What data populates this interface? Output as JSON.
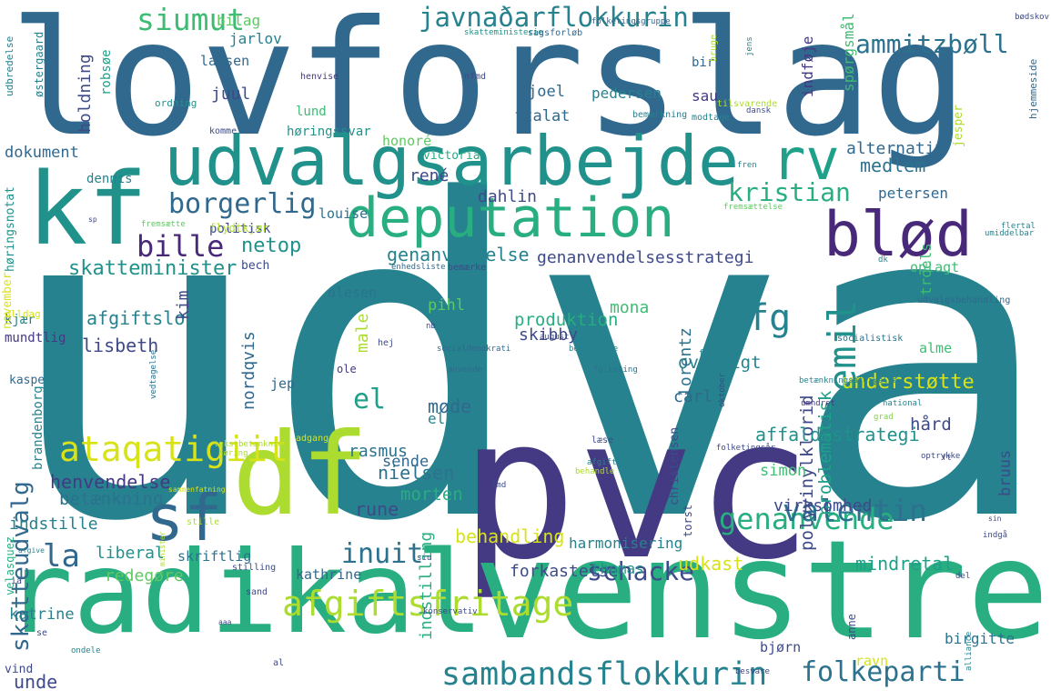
{
  "palette": {
    "dark_purple": "#482878",
    "purple": "#443983",
    "indigo": "#3e4a89",
    "blue": "#31688e",
    "steel": "#2c728e",
    "teal": "#26828e",
    "teal_green": "#21918c",
    "sea_green": "#1fa088",
    "green": "#28ae80",
    "emerald": "#3fbc73",
    "light_green": "#5ec962",
    "lime": "#84d44b",
    "yellow_green": "#addc30",
    "yellow": "#d8e219"
  },
  "words": [
    {
      "text": "udvalg",
      "color": "teal"
    },
    {
      "text": "lovforslag",
      "color": "blue"
    },
    {
      "text": "pvc",
      "color": "purple"
    },
    {
      "text": "venstre",
      "color": "green"
    },
    {
      "text": "radikal",
      "color": "green"
    },
    {
      "text": "udvalgsarbejde",
      "color": "teal_green"
    },
    {
      "text": "kf",
      "color": "teal_green"
    },
    {
      "text": "df",
      "color": "yellow_green"
    },
    {
      "text": "deputation",
      "color": "green"
    },
    {
      "text": "rv",
      "color": "sea_green"
    },
    {
      "text": "blød",
      "color": "dark_purple"
    },
    {
      "text": "sf",
      "color": "blue"
    },
    {
      "text": "afgiftsfritage",
      "color": "yellow_green"
    },
    {
      "text": "sambandsflokkurin",
      "color": "teal"
    },
    {
      "text": "javnaðarflokkurin",
      "color": "teal"
    },
    {
      "text": "ataqatigiit",
      "color": "yellow"
    },
    {
      "text": "siumut",
      "color": "emerald"
    },
    {
      "text": "ammitzbøll",
      "color": "steel"
    },
    {
      "text": "borgerlig",
      "color": "blue"
    },
    {
      "text": "bille",
      "color": "dark_purple"
    },
    {
      "text": "kristian",
      "color": "green"
    },
    {
      "text": "ufg",
      "color": "teal"
    },
    {
      "text": "emil",
      "color": "teal_green"
    },
    {
      "text": "genanvende",
      "color": "green"
    },
    {
      "text": "valentin",
      "color": "steel"
    },
    {
      "text": "folkeparti",
      "color": "steel"
    },
    {
      "text": "schacke",
      "color": "indigo"
    },
    {
      "text": "inuit",
      "color": "steel"
    },
    {
      "text": "la",
      "color": "blue"
    },
    {
      "text": "el",
      "color": "sea_green"
    },
    {
      "text": "skatteudvalg",
      "color": "blue"
    },
    {
      "text": "netop",
      "color": "teal_green"
    },
    {
      "text": "skatteminister",
      "color": "teal_green"
    },
    {
      "text": "genanvendelsesstrategi",
      "color": "indigo"
    },
    {
      "text": "produktion",
      "color": "green"
    },
    {
      "text": "polyvinylklorid",
      "color": "indigo"
    },
    {
      "text": "problematisk",
      "color": "sea_green"
    },
    {
      "text": "understøtte",
      "color": "yellow"
    },
    {
      "text": "mindretal",
      "color": "sea_green"
    },
    {
      "text": "affaldsstrategi",
      "color": "teal_green"
    },
    {
      "text": "virksomhed",
      "color": "indigo"
    },
    {
      "text": "indstille",
      "color": "teal"
    },
    {
      "text": "henvendelse",
      "color": "purple"
    },
    {
      "text": "betænkning",
      "color": "steel"
    },
    {
      "text": "liberal",
      "color": "teal_green"
    },
    {
      "text": "redegøre",
      "color": "light_green"
    },
    {
      "text": "katrine",
      "color": "teal"
    },
    {
      "text": "unde",
      "color": "indigo"
    },
    {
      "text": "skriftlig",
      "color": "steel"
    },
    {
      "text": "kathrine",
      "color": "blue"
    },
    {
      "text": "harmonisering",
      "color": "teal"
    },
    {
      "text": "forkastelse",
      "color": "indigo"
    },
    {
      "text": "thomas",
      "color": "teal_green"
    },
    {
      "text": "udkast",
      "color": "yellow"
    },
    {
      "text": "behandling",
      "color": "yellow"
    },
    {
      "text": "rune",
      "color": "indigo"
    },
    {
      "text": "morten",
      "color": "green"
    },
    {
      "text": "nielsen",
      "color": "steel"
    },
    {
      "text": "sende",
      "color": "blue"
    },
    {
      "text": "rasmus",
      "color": "steel"
    },
    {
      "text": "møde",
      "color": "blue"
    },
    {
      "text": "elholm",
      "color": "teal"
    },
    {
      "text": "carl",
      "color": "blue"
    },
    {
      "text": "oversigt",
      "color": "teal"
    },
    {
      "text": "lorentz",
      "color": "steel"
    },
    {
      "text": "skibby",
      "color": "indigo"
    },
    {
      "text": "nordqvis",
      "color": "blue"
    },
    {
      "text": "male",
      "color": "yellow_green"
    },
    {
      "text": "lisbeth",
      "color": "indigo"
    },
    {
      "text": "afgiftslov",
      "color": "teal"
    },
    {
      "text": "kim",
      "color": "indigo"
    },
    {
      "text": "mona",
      "color": "emerald"
    },
    {
      "text": "genanvendelse",
      "color": "teal"
    },
    {
      "text": "pihl",
      "color": "light_green"
    },
    {
      "text": "olesen",
      "color": "steel"
    },
    {
      "text": "dahlin",
      "color": "indigo"
    },
    {
      "text": "louise",
      "color": "steel"
    },
    {
      "text": "rené",
      "color": "indigo"
    },
    {
      "text": "politisk",
      "color": "indigo"
    },
    {
      "text": "bech",
      "color": "indigo"
    },
    {
      "text": "petersen",
      "color": "blue"
    },
    {
      "text": "alternativ",
      "color": "blue"
    },
    {
      "text": "medlem",
      "color": "steel"
    },
    {
      "text": "oplagt",
      "color": "emerald"
    },
    {
      "text": "dokument",
      "color": "blue"
    },
    {
      "text": "høringssvar",
      "color": "teal_green"
    },
    {
      "text": "lund",
      "color": "emerald"
    },
    {
      "text": "honoré",
      "color": "light_green"
    },
    {
      "text": "victoria",
      "color": "green"
    },
    {
      "text": "joel",
      "color": "blue"
    },
    {
      "text": "ftalat",
      "color": "blue"
    },
    {
      "text": "juul",
      "color": "indigo"
    },
    {
      "text": "birk",
      "color": "blue"
    },
    {
      "text": "sau",
      "color": "purple"
    },
    {
      "text": "pedersen",
      "color": "teal"
    },
    {
      "text": "larsen",
      "color": "blue"
    },
    {
      "text": "bilag",
      "color": "light_green"
    },
    {
      "text": "jarlov",
      "color": "teal"
    },
    {
      "text": "holdning",
      "color": "indigo"
    },
    {
      "text": "robsøe",
      "color": "sea_green"
    },
    {
      "text": "indføje",
      "color": "purple"
    },
    {
      "text": "spørgsmål",
      "color": "emerald"
    },
    {
      "text": "jesper",
      "color": "yellow_green"
    },
    {
      "text": "simon",
      "color": "emerald"
    },
    {
      "text": "hård",
      "color": "indigo"
    },
    {
      "text": "alme",
      "color": "emerald"
    },
    {
      "text": "ravn",
      "color": "yellow"
    },
    {
      "text": "birgitte",
      "color": "steel"
    },
    {
      "text": "christensen",
      "color": "indigo"
    },
    {
      "text": "bjørn",
      "color": "indigo"
    },
    {
      "text": "indstilling",
      "color": "green"
    },
    {
      "text": "bruus",
      "color": "indigo"
    },
    {
      "text": "kjær",
      "color": "teal"
    },
    {
      "text": "mundtlig",
      "color": "purple"
    },
    {
      "text": "kaspe",
      "color": "blue"
    },
    {
      "text": "jep",
      "color": "blue"
    },
    {
      "text": "brandenborg",
      "color": "teal"
    },
    {
      "text": "velasquez",
      "color": "green"
    },
    {
      "text": "vind",
      "color": "indigo"
    },
    {
      "text": "dennis",
      "color": "teal"
    },
    {
      "text": "høringsnotat",
      "color": "teal_green"
    },
    {
      "text": "troels",
      "color": "emerald"
    },
    {
      "text": "flydtkjær",
      "color": "yellow_green"
    },
    {
      "text": "ole",
      "color": "purple"
    },
    {
      "text": "olldag",
      "color": "yellow"
    },
    {
      "text": "november",
      "color": "yellow"
    },
    {
      "text": "torst",
      "color": "indigo"
    },
    {
      "text": "anne",
      "color": "indigo"
    },
    {
      "text": "østergaard",
      "color": "teal"
    },
    {
      "text": "udbredelse",
      "color": "teal"
    },
    {
      "text": "hjemmeside",
      "color": "blue"
    },
    {
      "text": "skatteministerie",
      "color": "teal_green"
    },
    {
      "text": "sagsforløb",
      "color": "blue"
    },
    {
      "text": "folketingsgruppe",
      "color": "blue"
    },
    {
      "text": "henvise",
      "color": "purple"
    },
    {
      "text": "ordning",
      "color": "teal_green"
    },
    {
      "text": "komme",
      "color": "indigo"
    },
    {
      "text": "nfmd",
      "color": "indigo"
    },
    {
      "text": "bruge",
      "color": "yellow_green"
    },
    {
      "text": "bemærkning",
      "color": "teal"
    },
    {
      "text": "tilsvarende",
      "color": "yellow_green"
    },
    {
      "text": "modtage",
      "color": "teal"
    },
    {
      "text": "dansk",
      "color": "indigo"
    },
    {
      "text": "jens",
      "color": "teal"
    },
    {
      "text": "bødskov",
      "color": "indigo"
    },
    {
      "text": "fremsætte",
      "color": "light_green"
    },
    {
      "text": "fremsættelse",
      "color": "light_green"
    },
    {
      "text": "umiddelbar",
      "color": "teal"
    },
    {
      "text": "flertal",
      "color": "teal"
    },
    {
      "text": "bemærke",
      "color": "indigo"
    },
    {
      "text": "udvalgsbehandling",
      "color": "blue"
    },
    {
      "text": "enhedsliste",
      "color": "blue"
    },
    {
      "text": "nb",
      "color": "indigo"
    },
    {
      "text": "august",
      "color": "indigo"
    },
    {
      "text": "socialistisk",
      "color": "steel"
    },
    {
      "text": "jensen",
      "color": "teal"
    },
    {
      "text": "vedtagelse",
      "color": "steel"
    },
    {
      "text": "socialdemokrati",
      "color": "blue"
    },
    {
      "text": "anvende",
      "color": "blue"
    },
    {
      "text": "besvarelse",
      "color": "teal"
    },
    {
      "text": "folketing",
      "color": "steel"
    },
    {
      "text": "fare",
      "color": "teal"
    },
    {
      "text": "oktober",
      "color": "indigo"
    },
    {
      "text": "parti",
      "color": "teal"
    },
    {
      "text": "betænkningsafgivelse",
      "color": "teal"
    },
    {
      "text": "hej",
      "color": "indigo"
    },
    {
      "text": "umndret",
      "color": "purple"
    },
    {
      "text": "grad",
      "color": "lime"
    },
    {
      "text": "national",
      "color": "teal"
    },
    {
      "text": "adgang",
      "color": "yellow"
    },
    {
      "text": "læse",
      "color": "indigo"
    },
    {
      "text": "folketingsår",
      "color": "indigo"
    },
    {
      "text": "optrykke",
      "color": "indigo"
    },
    {
      "text": "ft",
      "color": "indigo"
    },
    {
      "text": "høring",
      "color": "yellow_green"
    },
    {
      "text": "afgift",
      "color": "teal"
    },
    {
      "text": "behandle",
      "color": "yellow_green"
    },
    {
      "text": "fmd",
      "color": "indigo"
    },
    {
      "text": "stille",
      "color": "yellow_green"
    },
    {
      "text": "minister",
      "color": "yellow_green"
    },
    {
      "text": "tekstbetænkning",
      "color": "yellow_green"
    },
    {
      "text": "afgive",
      "color": "teal"
    },
    {
      "text": "sammenfatning",
      "color": "yellow"
    },
    {
      "text": "ia",
      "color": "indigo"
    },
    {
      "text": "stilling",
      "color": "indigo"
    },
    {
      "text": "sand",
      "color": "indigo"
    },
    {
      "text": "siu",
      "color": "indigo"
    },
    {
      "text": "del",
      "color": "indigo"
    },
    {
      "text": "konservativ",
      "color": "indigo"
    },
    {
      "text": "se",
      "color": "indigo"
    },
    {
      "text": "ondele",
      "color": "teal"
    },
    {
      "text": "al",
      "color": "indigo"
    },
    {
      "text": "besvare",
      "color": "indigo"
    },
    {
      "text": "indgå",
      "color": "indigo"
    },
    {
      "text": "alliance",
      "color": "teal"
    },
    {
      "text": "sin",
      "color": "indigo"
    },
    {
      "text": "fren",
      "color": "teal"
    },
    {
      "text": "dk",
      "color": "teal"
    },
    {
      "text": "sp",
      "color": "indigo"
    },
    {
      "text": "aaa",
      "color": "indigo"
    }
  ]
}
